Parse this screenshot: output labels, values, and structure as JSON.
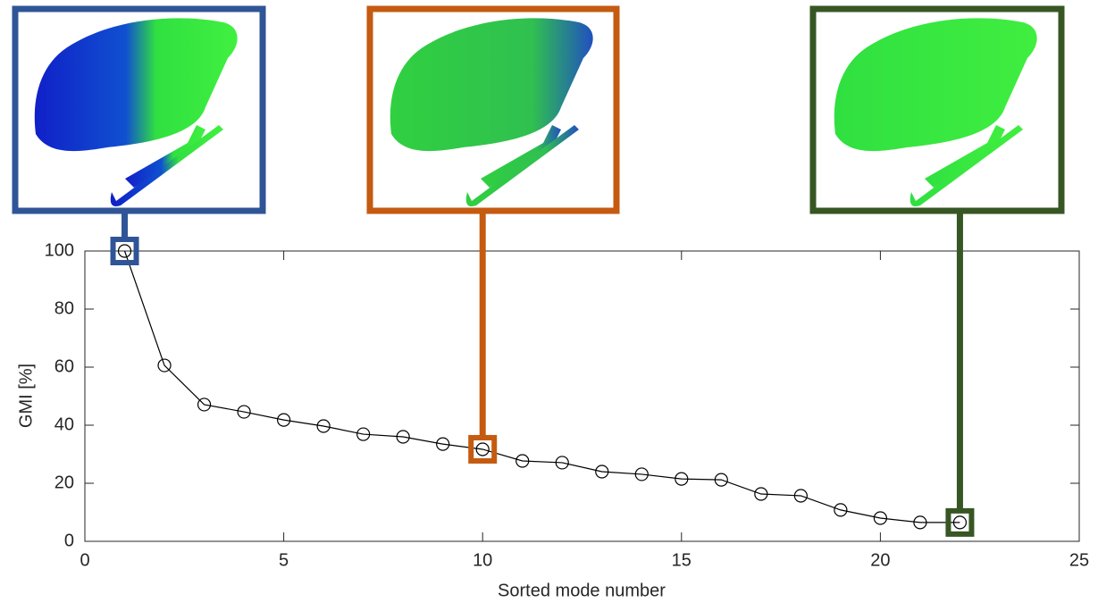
{
  "chart_data": {
    "type": "line",
    "x_label": "Sorted mode number",
    "y_label": "GMI [%]",
    "x": [
      1,
      2,
      3,
      4,
      5,
      6,
      7,
      8,
      9,
      10,
      11,
      12,
      13,
      14,
      15,
      16,
      17,
      18,
      19,
      20,
      21,
      22
    ],
    "series": [
      {
        "color": "#000000",
        "values": [
          100,
          60.6,
          47.1,
          44.6,
          41.8,
          39.7,
          36.9,
          36,
          33.5,
          31.7,
          27.7,
          27.1,
          24,
          23.1,
          21.5,
          21.2,
          16.3,
          15.7,
          10.8,
          8,
          6.5,
          6.5
        ]
      }
    ],
    "xlim": [
      0,
      25
    ],
    "xticks": [
      0,
      5,
      10,
      15,
      20,
      25
    ],
    "ylim": [
      0,
      100
    ],
    "yticks": [
      0,
      20,
      40,
      60,
      80,
      100
    ],
    "grid": false,
    "highlights": [
      {
        "x": 1,
        "color": "#2f5597"
      },
      {
        "x": 10,
        "color": "#c55a11"
      },
      {
        "x": 22,
        "color": "#375623"
      }
    ]
  }
}
